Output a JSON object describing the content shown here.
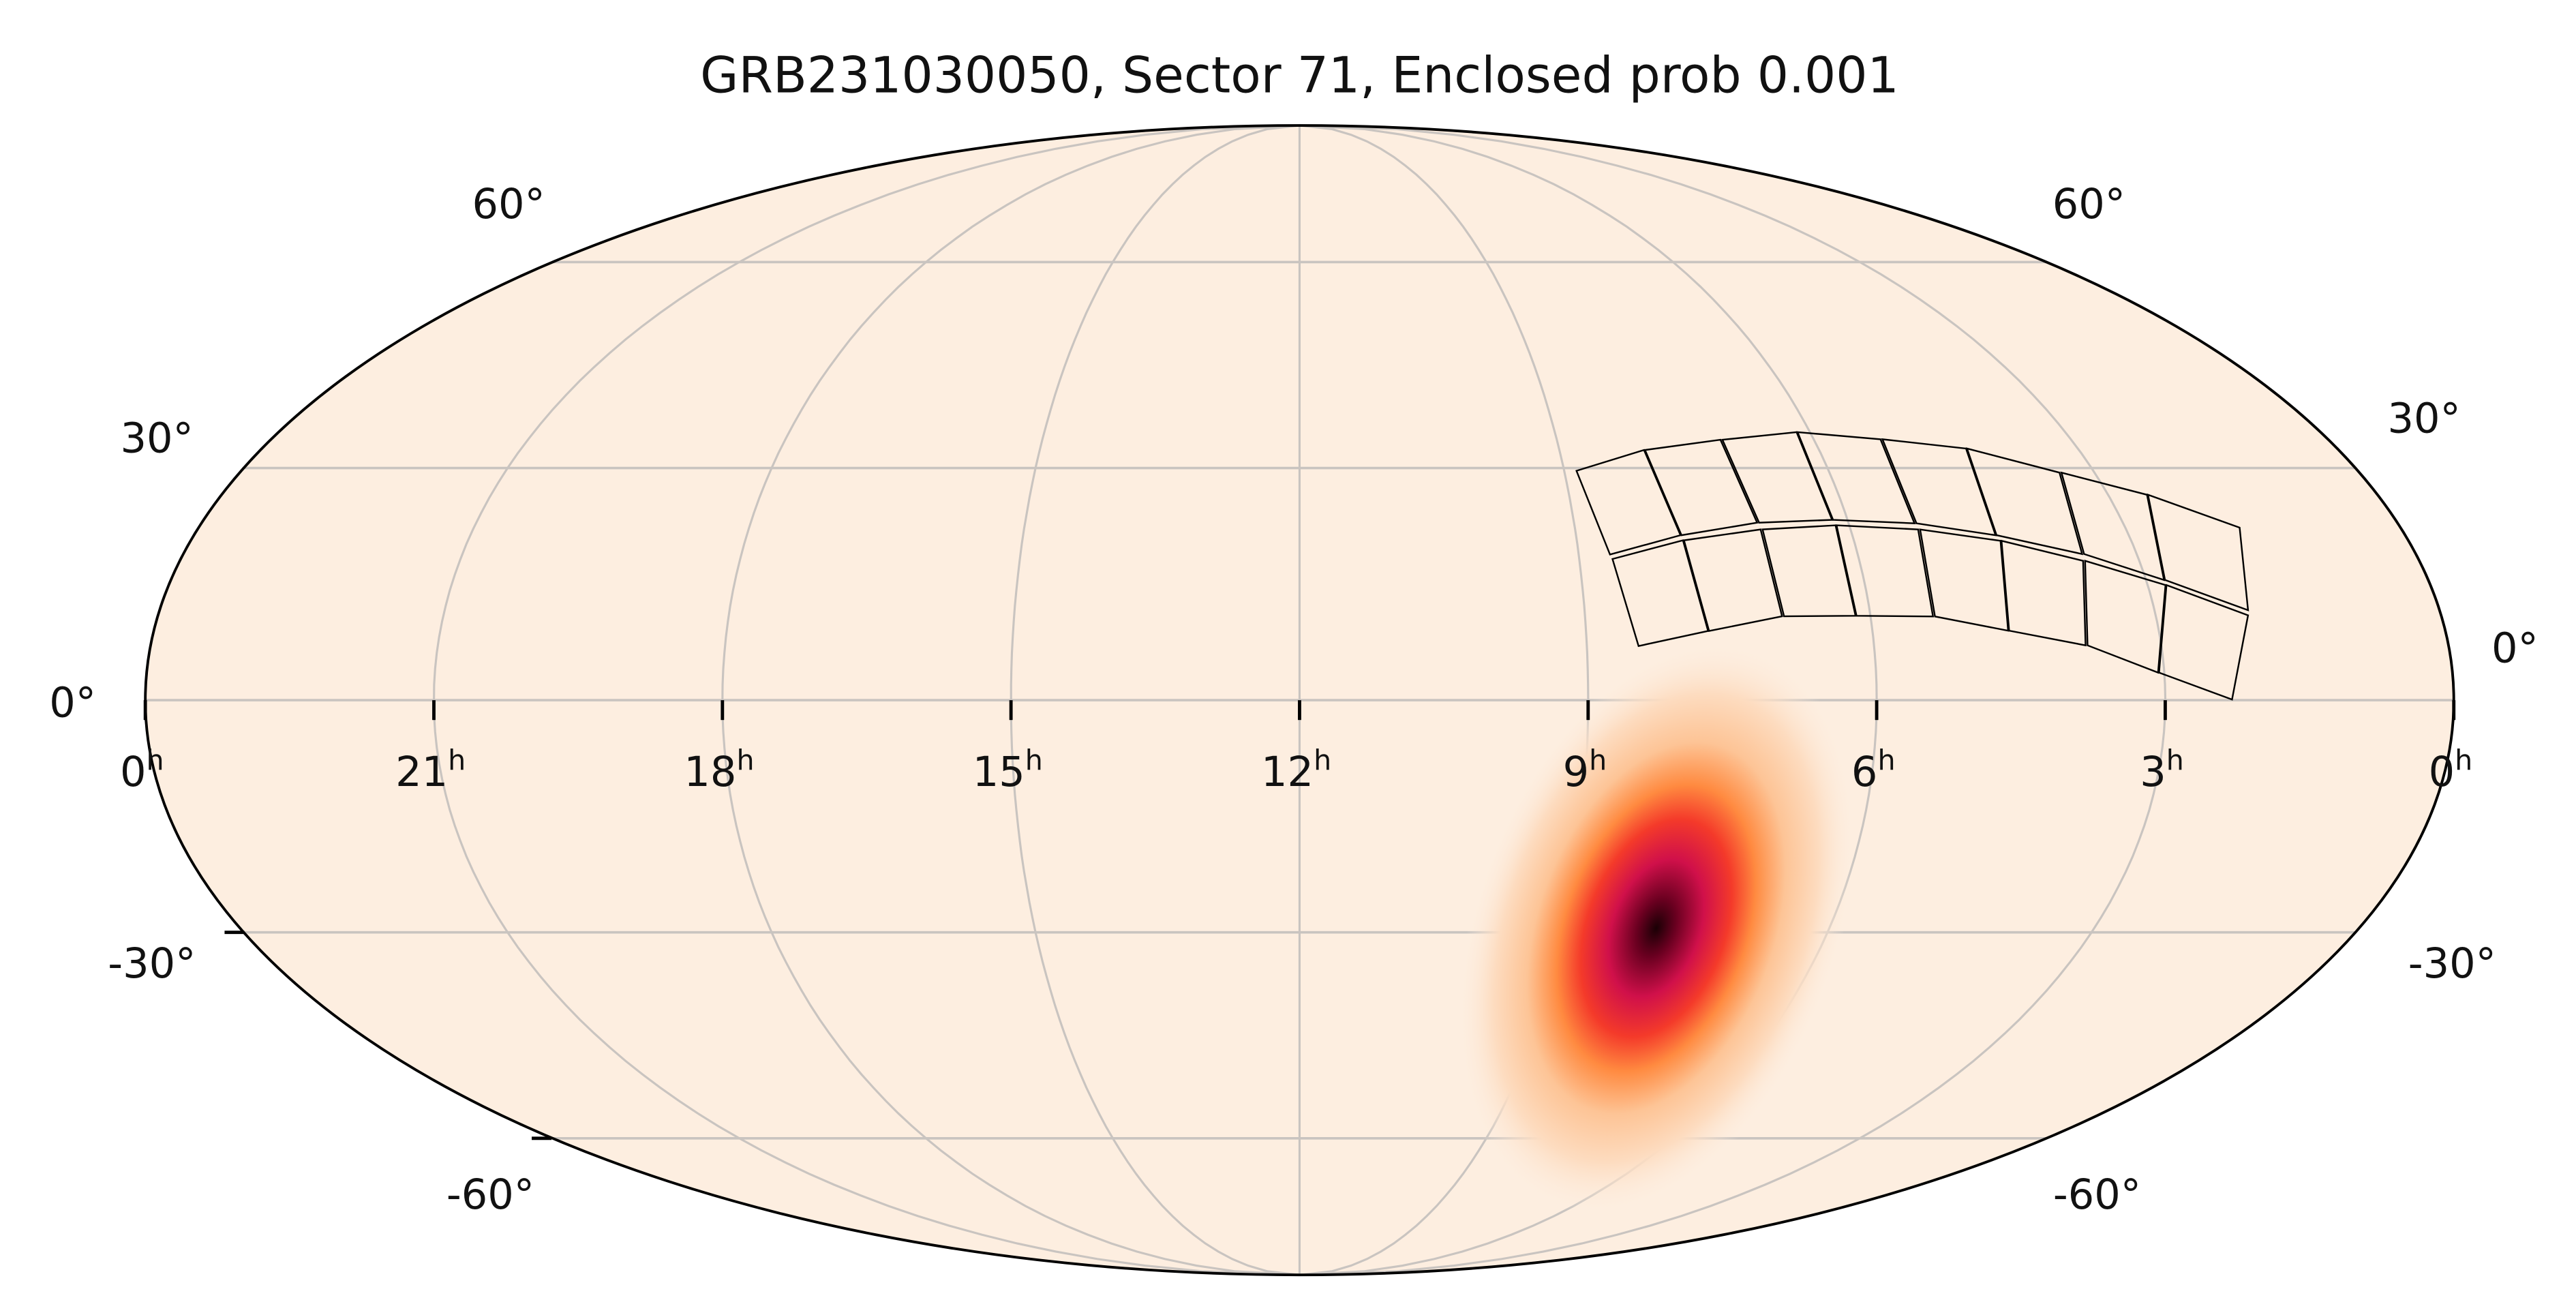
{
  "chart_data": {
    "type": "heatmap",
    "projection": "mollweide",
    "title": "GRB231030050, Sector 71, Enclosed prob 0.001",
    "background_color": "#fdeee0",
    "grid": true,
    "ra_ticks": [
      {
        "value": "0",
        "sup": "h",
        "ra_h": 24
      },
      {
        "value": "21",
        "sup": "h",
        "ra_h": 21
      },
      {
        "value": "18",
        "sup": "h",
        "ra_h": 18
      },
      {
        "value": "15",
        "sup": "h",
        "ra_h": 15
      },
      {
        "value": "12",
        "sup": "h",
        "ra_h": 12
      },
      {
        "value": "9",
        "sup": "h",
        "ra_h": 9
      },
      {
        "value": "6",
        "sup": "h",
        "ra_h": 6
      },
      {
        "value": "3",
        "sup": "h",
        "ra_h": 3
      },
      {
        "value": "0",
        "sup": "h",
        "ra_h": 0
      }
    ],
    "dec_ticks_left": [
      "60°",
      "30°",
      "0°",
      "-30°",
      "-60°"
    ],
    "dec_ticks_right": [
      "60°",
      "30°",
      "0°",
      "-30°",
      "-60°"
    ],
    "dec_grid": [
      60,
      30,
      0,
      -30,
      -60
    ],
    "probability_peak": {
      "ra_h": 7.8,
      "dec_deg": -33
    },
    "colormap_colors": [
      "#1a0005",
      "#7a0025",
      "#d0104a",
      "#f23a2a",
      "#ff8a40",
      "#fdc090",
      "#fdeee0"
    ]
  }
}
